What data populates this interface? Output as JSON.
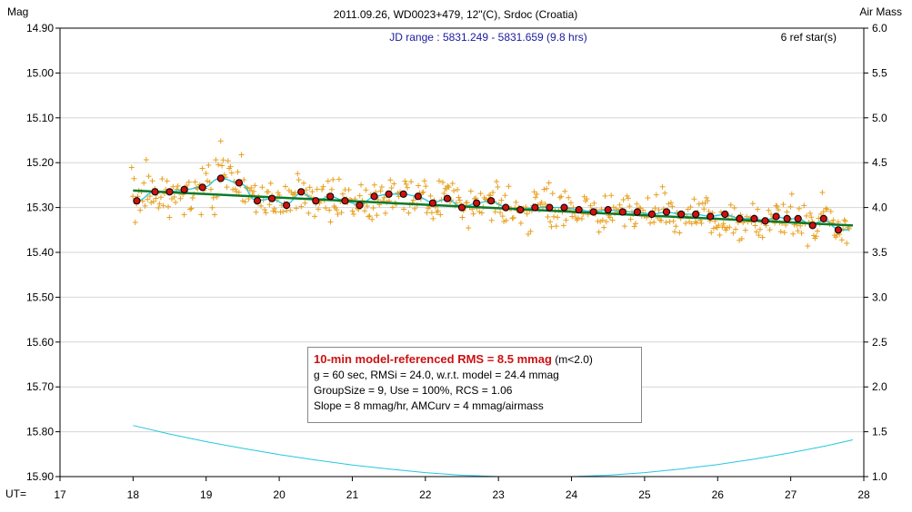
{
  "chart_data": {
    "type": "scatter",
    "title": "2011.09.26, WD0023+479, 12\"(C), Srdoc (Croatia)",
    "subtitle": "JD range : 5831.249 - 5831.659 (9.8 hrs)",
    "ref_stars": "6 ref star(s)",
    "ylabel": "Mag",
    "y2label": "Air Mass",
    "xlabel": "UT=",
    "xlim": [
      17,
      28
    ],
    "ylim": [
      15.9,
      14.9
    ],
    "y2lim": [
      1.0,
      6.0
    ],
    "x_ticks": [
      "17",
      "18",
      "19",
      "20",
      "21",
      "22",
      "23",
      "24",
      "25",
      "26",
      "27",
      "28"
    ],
    "y_ticks": [
      "14.90",
      "15.00",
      "15.10",
      "15.20",
      "15.30",
      "15.40",
      "15.50",
      "15.60",
      "15.70",
      "15.80",
      "15.90"
    ],
    "y2_ticks": [
      "6.0",
      "5.5",
      "5.0",
      "4.5",
      "4.0",
      "3.5",
      "3.0",
      "2.5",
      "2.0",
      "1.5",
      "1.0"
    ],
    "colors": {
      "raw_points": "#e8a020",
      "binned_points": "#cc1111",
      "trend": "#0b7a2a",
      "model": "#22c8e0",
      "airmass": "#22c8e0",
      "subtitle": "#1a1aa0"
    },
    "series": [
      {
        "kind": "binned",
        "x": [
          18.05,
          18.3,
          18.5,
          18.7,
          18.95,
          19.2,
          19.45,
          19.7,
          19.9,
          20.1,
          20.3,
          20.5,
          20.7,
          20.9,
          21.1,
          21.3,
          21.5,
          21.7,
          21.9,
          22.1,
          22.3,
          22.5,
          22.7,
          22.9,
          23.1,
          23.3,
          23.5,
          23.7,
          23.9,
          24.1,
          24.3,
          24.5,
          24.7,
          24.9,
          25.1,
          25.3,
          25.5,
          25.7,
          25.9,
          26.1,
          26.3,
          26.5,
          26.65,
          26.8,
          26.95,
          27.1,
          27.3,
          27.45,
          27.65
        ],
        "y": [
          15.285,
          15.265,
          15.265,
          15.26,
          15.255,
          15.235,
          15.245,
          15.285,
          15.28,
          15.295,
          15.265,
          15.285,
          15.275,
          15.285,
          15.295,
          15.275,
          15.27,
          15.27,
          15.275,
          15.29,
          15.28,
          15.3,
          15.29,
          15.285,
          15.3,
          15.305,
          15.3,
          15.3,
          15.3,
          15.305,
          15.31,
          15.305,
          15.31,
          15.31,
          15.315,
          15.31,
          15.315,
          15.315,
          15.32,
          15.315,
          15.325,
          15.325,
          15.33,
          15.32,
          15.325,
          15.325,
          15.34,
          15.325,
          15.35
        ]
      },
      {
        "kind": "trend",
        "x": [
          18.0,
          27.85
        ],
        "y": [
          15.262,
          15.34
        ]
      },
      {
        "kind": "airmass",
        "x": [
          18.0,
          18.5,
          19.0,
          19.5,
          20.0,
          20.5,
          21.0,
          21.5,
          22.0,
          22.5,
          23.0,
          23.5,
          24.0,
          24.5,
          25.0,
          25.5,
          26.0,
          26.5,
          27.0,
          27.5,
          27.85
        ],
        "y": [
          1.57,
          1.475,
          1.39,
          1.315,
          1.245,
          1.185,
          1.13,
          1.085,
          1.045,
          1.015,
          0.99,
          0.985,
          0.995,
          1.015,
          1.045,
          1.085,
          1.135,
          1.195,
          1.265,
          1.345,
          1.41
        ]
      }
    ]
  },
  "legend": {
    "line1": "10-min model-referenced RMS = 8.5 mmag",
    "line1_suffix": " (m<2.0)",
    "line2": "g = 60 sec, RMSi = 24.0, w.r.t. model = 24.4 mmag",
    "line3": "GroupSize = 9, Use = 100%, RCS = 1.06",
    "line4": "Slope = 8 mmag/hr, AMCurv = 4 mmag/airmass"
  }
}
